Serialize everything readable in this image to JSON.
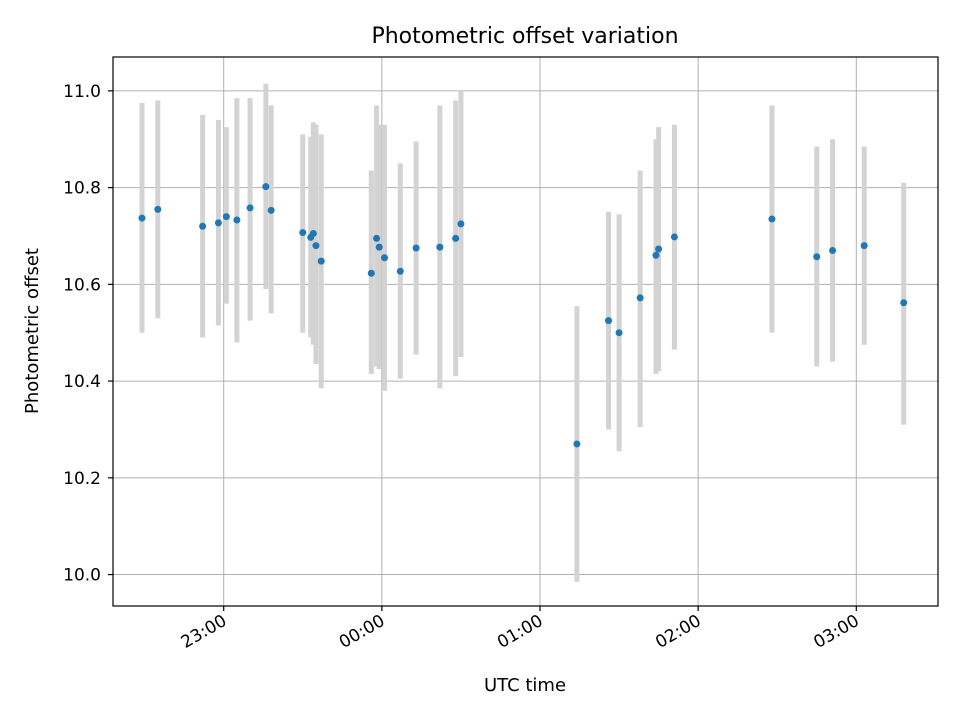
{
  "chart_data": {
    "type": "scatter",
    "title": "Photometric offset variation",
    "xlabel": "UTC time",
    "ylabel": "Photometric offset",
    "x_unit": "UTC hh:mm",
    "xlim": [
      "22:18",
      "03:31"
    ],
    "ylim": [
      9.935,
      11.07
    ],
    "grid": true,
    "x_ticks": [
      "23:00",
      "00:00",
      "01:00",
      "02:00",
      "03:00"
    ],
    "y_ticks": [
      "10.0",
      "10.2",
      "10.4",
      "10.6",
      "10.8",
      "11.0"
    ],
    "colors": {
      "point": "#1f77b4",
      "errorbar": "#d3d3d3",
      "grid": "#b0b0b0"
    },
    "points": [
      {
        "t": "22:29",
        "y": 10.737,
        "lo": 10.5,
        "hi": 10.975
      },
      {
        "t": "22:35",
        "y": 10.755,
        "lo": 10.53,
        "hi": 10.98
      },
      {
        "t": "22:52",
        "y": 10.72,
        "lo": 10.49,
        "hi": 10.95
      },
      {
        "t": "22:58",
        "y": 10.727,
        "lo": 10.515,
        "hi": 10.94
      },
      {
        "t": "23:01",
        "y": 10.74,
        "lo": 10.56,
        "hi": 10.925
      },
      {
        "t": "23:05",
        "y": 10.733,
        "lo": 10.48,
        "hi": 10.985
      },
      {
        "t": "23:10",
        "y": 10.758,
        "lo": 10.525,
        "hi": 10.985
      },
      {
        "t": "23:16",
        "y": 10.802,
        "lo": 10.59,
        "hi": 11.015
      },
      {
        "t": "23:18",
        "y": 10.753,
        "lo": 10.54,
        "hi": 10.97
      },
      {
        "t": "23:30",
        "y": 10.707,
        "lo": 10.5,
        "hi": 10.91
      },
      {
        "t": "23:33",
        "y": 10.697,
        "lo": 10.49,
        "hi": 10.905
      },
      {
        "t": "23:34",
        "y": 10.705,
        "lo": 10.475,
        "hi": 10.935
      },
      {
        "t": "23:35",
        "y": 10.68,
        "lo": 10.435,
        "hi": 10.93
      },
      {
        "t": "23:37",
        "y": 10.648,
        "lo": 10.385,
        "hi": 10.91
      },
      {
        "t": "23:56",
        "y": 10.623,
        "lo": 10.415,
        "hi": 10.835
      },
      {
        "t": "23:58",
        "y": 10.695,
        "lo": 10.43,
        "hi": 10.97
      },
      {
        "t": "23:59",
        "y": 10.677,
        "lo": 10.425,
        "hi": 10.93
      },
      {
        "t": "00:01",
        "y": 10.655,
        "lo": 10.38,
        "hi": 10.93
      },
      {
        "t": "00:07",
        "y": 10.627,
        "lo": 10.405,
        "hi": 10.85
      },
      {
        "t": "00:13",
        "y": 10.675,
        "lo": 10.455,
        "hi": 10.895
      },
      {
        "t": "00:22",
        "y": 10.677,
        "lo": 10.385,
        "hi": 10.97
      },
      {
        "t": "00:28",
        "y": 10.695,
        "lo": 10.41,
        "hi": 10.98
      },
      {
        "t": "00:30",
        "y": 10.725,
        "lo": 10.45,
        "hi": 11.0
      },
      {
        "t": "01:14",
        "y": 10.27,
        "lo": 9.985,
        "hi": 10.555
      },
      {
        "t": "01:26",
        "y": 10.525,
        "lo": 10.3,
        "hi": 10.75
      },
      {
        "t": "01:30",
        "y": 10.5,
        "lo": 10.255,
        "hi": 10.745
      },
      {
        "t": "01:38",
        "y": 10.572,
        "lo": 10.305,
        "hi": 10.835
      },
      {
        "t": "01:44",
        "y": 10.66,
        "lo": 10.415,
        "hi": 10.9
      },
      {
        "t": "01:45",
        "y": 10.673,
        "lo": 10.42,
        "hi": 10.925
      },
      {
        "t": "01:51",
        "y": 10.698,
        "lo": 10.465,
        "hi": 10.93
      },
      {
        "t": "02:28",
        "y": 10.735,
        "lo": 10.5,
        "hi": 10.97
      },
      {
        "t": "02:45",
        "y": 10.657,
        "lo": 10.43,
        "hi": 10.885
      },
      {
        "t": "02:51",
        "y": 10.67,
        "lo": 10.44,
        "hi": 10.9
      },
      {
        "t": "03:03",
        "y": 10.68,
        "lo": 10.475,
        "hi": 10.885
      },
      {
        "t": "03:18",
        "y": 10.562,
        "lo": 10.31,
        "hi": 10.81
      }
    ]
  }
}
